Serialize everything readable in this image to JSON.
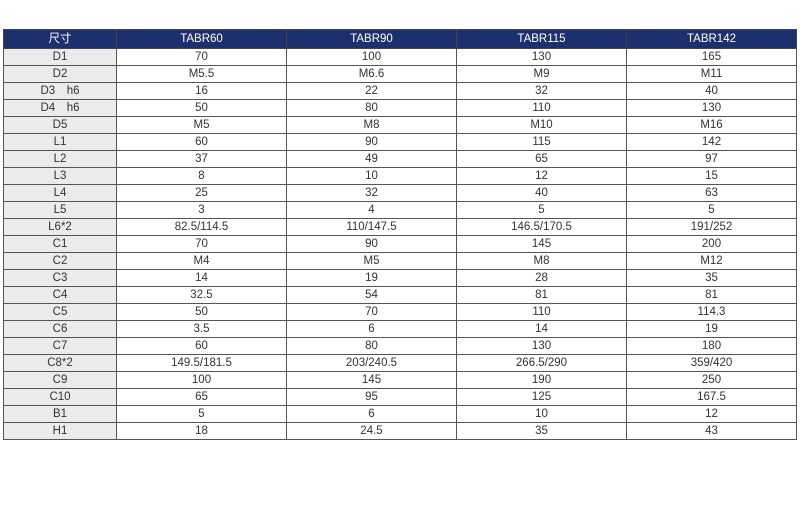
{
  "table": {
    "headers": [
      "尺寸",
      "TABR60",
      "TABR90",
      "TABR115",
      "TABR142"
    ],
    "rows": [
      [
        "D1",
        "70",
        "100",
        "130",
        "165"
      ],
      [
        "D2",
        "M5.5",
        "M6.6",
        "M9",
        "M11"
      ],
      [
        "D3　h6",
        "16",
        "22",
        "32",
        "40"
      ],
      [
        "D4　h6",
        "50",
        "80",
        "110",
        "130"
      ],
      [
        "D5",
        "M5",
        "M8",
        "M10",
        "M16"
      ],
      [
        "L1",
        "60",
        "90",
        "115",
        "142"
      ],
      [
        "L2",
        "37",
        "49",
        "65",
        "97"
      ],
      [
        "L3",
        "8",
        "10",
        "12",
        "15"
      ],
      [
        "L4",
        "25",
        "32",
        "40",
        "63"
      ],
      [
        "L5",
        "3",
        "4",
        "5",
        "5"
      ],
      [
        "L6*2",
        "82.5/114.5",
        "110/147.5",
        "146.5/170.5",
        "191/252"
      ],
      [
        "C1",
        "70",
        "90",
        "145",
        "200"
      ],
      [
        "C2",
        "M4",
        "M5",
        "M8",
        "M12"
      ],
      [
        "C3",
        "14",
        "19",
        "28",
        "35"
      ],
      [
        "C4",
        "32.5",
        "54",
        "81",
        "81"
      ],
      [
        "C5",
        "50",
        "70",
        "110",
        "114.3"
      ],
      [
        "C6",
        "3.5",
        "6",
        "14",
        "19"
      ],
      [
        "C7",
        "60",
        "80",
        "130",
        "180"
      ],
      [
        "C8*2",
        "149.5/181.5",
        "203/240.5",
        "266.5/290",
        "359/420"
      ],
      [
        "C9",
        "100",
        "145",
        "190",
        "250"
      ],
      [
        "C10",
        "65",
        "95",
        "125",
        "167.5"
      ],
      [
        "B1",
        "5",
        "6",
        "10",
        "12"
      ],
      [
        "H1",
        "18",
        "24.5",
        "35",
        "43"
      ]
    ]
  },
  "colors": {
    "header_bg": "#1e2f6e",
    "label_bg": "#ebebeb",
    "border": "#555555"
  }
}
